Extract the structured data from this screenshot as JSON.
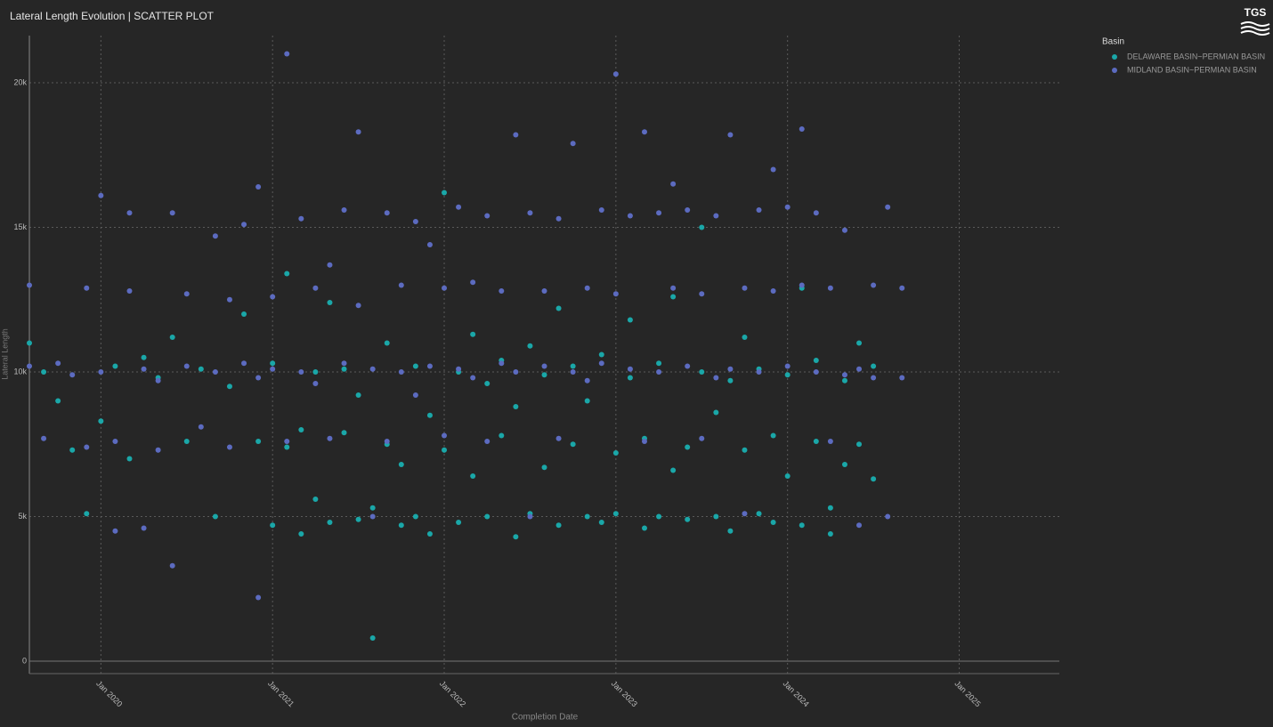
{
  "chart_data": {
    "type": "scatter",
    "title": "Lateral Length Evolution | SCATTER PLOT",
    "logo": "TGS",
    "x_label": "Completion Date",
    "y_label": "Lateral Length",
    "legend_title": "Basin",
    "legend_position": "right",
    "grid": true,
    "xlim": [
      "2019-08",
      "2025-08"
    ],
    "xticks": [
      {
        "value": "2020-01",
        "label": "Jan 2020"
      },
      {
        "value": "2021-01",
        "label": "Jan 2021"
      },
      {
        "value": "2022-01",
        "label": "Jan 2022"
      },
      {
        "value": "2023-01",
        "label": "Jan 2023"
      },
      {
        "value": "2024-01",
        "label": "Jan 2024"
      },
      {
        "value": "2025-01",
        "label": "Jan 2025"
      }
    ],
    "ylim": [
      -430,
      21630
    ],
    "yticks": [
      0,
      {
        "value": 5000,
        "label": "5k"
      },
      {
        "value": 10000,
        "label": "10k"
      },
      {
        "value": 15000,
        "label": "15k"
      },
      {
        "value": 20000,
        "label": "20k"
      }
    ],
    "series": [
      {
        "name": "DELAWARE BASIN~PERMIAN BASIN",
        "color": "#1aa7a8",
        "x": [
          "2019-08",
          "2019-09",
          "2019-10",
          "2019-11",
          "2019-12",
          "2020-01",
          "2020-02",
          "2020-03",
          "2020-04",
          "2020-05",
          "2020-06",
          "2020-07",
          "2020-08",
          "2020-09",
          "2020-10",
          "2020-11",
          "2020-12",
          "2021-01",
          "2021-01",
          "2021-02",
          "2021-02",
          "2021-03",
          "2021-03",
          "2021-04",
          "2021-04",
          "2021-05",
          "2021-05",
          "2021-06",
          "2021-06",
          "2021-07",
          "2021-07",
          "2021-08",
          "2021-08",
          "2021-09",
          "2021-09",
          "2021-10",
          "2021-10",
          "2021-11",
          "2021-11",
          "2021-12",
          "2021-12",
          "2022-01",
          "2022-01",
          "2022-02",
          "2022-02",
          "2022-03",
          "2022-03",
          "2022-04",
          "2022-04",
          "2022-05",
          "2022-05",
          "2022-06",
          "2022-06",
          "2022-07",
          "2022-07",
          "2022-08",
          "2022-08",
          "2022-09",
          "2022-09",
          "2022-10",
          "2022-10",
          "2022-11",
          "2022-11",
          "2022-12",
          "2022-12",
          "2023-01",
          "2023-01",
          "2023-02",
          "2023-02",
          "2023-03",
          "2023-03",
          "2023-04",
          "2023-04",
          "2023-05",
          "2023-05",
          "2023-06",
          "2023-06",
          "2023-07",
          "2023-07",
          "2023-08",
          "2023-08",
          "2023-09",
          "2023-09",
          "2023-10",
          "2023-10",
          "2023-11",
          "2023-11",
          "2023-12",
          "2023-12",
          "2024-01",
          "2024-01",
          "2024-02",
          "2024-02",
          "2024-03",
          "2024-03",
          "2024-04",
          "2024-04",
          "2024-05",
          "2024-05",
          "2024-06",
          "2024-06",
          "2024-07",
          "2024-07"
        ],
        "values": [
          11000,
          10000,
          9000,
          7300,
          5100,
          8300,
          10200,
          7000,
          10500,
          9800,
          11200,
          7600,
          10100,
          5000,
          9500,
          12000,
          7600,
          4700,
          10300,
          13400,
          7400,
          4400,
          8000,
          10000,
          5600,
          12400,
          4800,
          7900,
          10100,
          9200,
          4900,
          800,
          5300,
          11000,
          7500,
          4700,
          6800,
          10200,
          5000,
          8500,
          4400,
          16200,
          7300,
          10000,
          4800,
          6400,
          11300,
          9600,
          5000,
          7800,
          10400,
          4300,
          8800,
          10900,
          5100,
          6700,
          9900,
          4700,
          12200,
          7500,
          10200,
          5000,
          9000,
          4800,
          10600,
          7200,
          5100,
          9800,
          11800,
          4600,
          7700,
          10300,
          5000,
          6600,
          12600,
          7400,
          4900,
          10000,
          15000,
          5000,
          8600,
          9700,
          4500,
          7300,
          11200,
          5100,
          10100,
          7800,
          4800,
          6400,
          9900,
          4700,
          12900,
          7600,
          10400,
          4400,
          5300,
          9700,
          6800,
          11000,
          7500,
          10200,
          6300
        ]
      },
      {
        "name": "MIDLAND BASIN~PERMIAN BASIN",
        "color": "#5c6bc0",
        "x": [
          "2019-08",
          "2019-08",
          "2019-09",
          "2019-10",
          "2019-11",
          "2019-12",
          "2019-12",
          "2020-01",
          "2020-01",
          "2020-02",
          "2020-02",
          "2020-03",
          "2020-03",
          "2020-04",
          "2020-04",
          "2020-05",
          "2020-05",
          "2020-06",
          "2020-06",
          "2020-07",
          "2020-07",
          "2020-08",
          "2020-09",
          "2020-09",
          "2020-10",
          "2020-10",
          "2020-11",
          "2020-11",
          "2020-12",
          "2020-12",
          "2020-12",
          "2021-01",
          "2021-01",
          "2021-02",
          "2021-02",
          "2021-03",
          "2021-03",
          "2021-04",
          "2021-04",
          "2021-05",
          "2021-05",
          "2021-06",
          "2021-06",
          "2021-07",
          "2021-07",
          "2021-08",
          "2021-08",
          "2021-09",
          "2021-09",
          "2021-10",
          "2021-10",
          "2021-11",
          "2021-11",
          "2021-12",
          "2021-12",
          "2022-01",
          "2022-01",
          "2022-02",
          "2022-02",
          "2022-03",
          "2022-03",
          "2022-04",
          "2022-04",
          "2022-05",
          "2022-05",
          "2022-06",
          "2022-06",
          "2022-07",
          "2022-07",
          "2022-08",
          "2022-08",
          "2022-09",
          "2022-09",
          "2022-10",
          "2022-10",
          "2022-11",
          "2022-11",
          "2022-12",
          "2022-12",
          "2023-01",
          "2023-01",
          "2023-02",
          "2023-02",
          "2023-03",
          "2023-03",
          "2023-04",
          "2023-04",
          "2023-05",
          "2023-05",
          "2023-06",
          "2023-06",
          "2023-07",
          "2023-07",
          "2023-08",
          "2023-08",
          "2023-09",
          "2023-09",
          "2023-10",
          "2023-10",
          "2023-11",
          "2023-11",
          "2023-12",
          "2023-12",
          "2024-01",
          "2024-01",
          "2024-02",
          "2024-02",
          "2024-03",
          "2024-03",
          "2024-04",
          "2024-04",
          "2024-05",
          "2024-05",
          "2024-06",
          "2024-06",
          "2024-07",
          "2024-07",
          "2024-08",
          "2024-08",
          "2024-09",
          "2024-09"
        ],
        "values": [
          13000,
          10200,
          7700,
          10300,
          9900,
          12900,
          7400,
          16100,
          10000,
          4500,
          7600,
          15500,
          12800,
          10100,
          4600,
          7300,
          9700,
          15500,
          3300,
          12700,
          10200,
          8100,
          14700,
          10000,
          12500,
          7400,
          10300,
          15100,
          16400,
          9800,
          2200,
          12600,
          10100,
          21000,
          7600,
          15300,
          10000,
          12900,
          9600,
          13700,
          7700,
          15600,
          10300,
          18300,
          12300,
          10100,
          5000,
          15500,
          7600,
          13000,
          10000,
          15200,
          9200,
          14400,
          10200,
          12900,
          7800,
          15700,
          10100,
          13100,
          9800,
          15400,
          7600,
          12800,
          10300,
          18200,
          10000,
          15500,
          5000,
          12800,
          10200,
          15300,
          7700,
          17900,
          10000,
          12900,
          9700,
          15600,
          10300,
          20300,
          12700,
          15400,
          10100,
          18300,
          7600,
          15500,
          10000,
          12900,
          16500,
          15600,
          10200,
          12700,
          7700,
          15400,
          9800,
          18200,
          10100,
          12900,
          5100,
          15600,
          10000,
          17000,
          12800,
          15700,
          10200,
          18400,
          13000,
          15500,
          10000,
          12900,
          7600,
          14900,
          9900,
          10100,
          4700,
          13000,
          9800,
          15700,
          5000,
          12900,
          9800
        ]
      }
    ]
  }
}
